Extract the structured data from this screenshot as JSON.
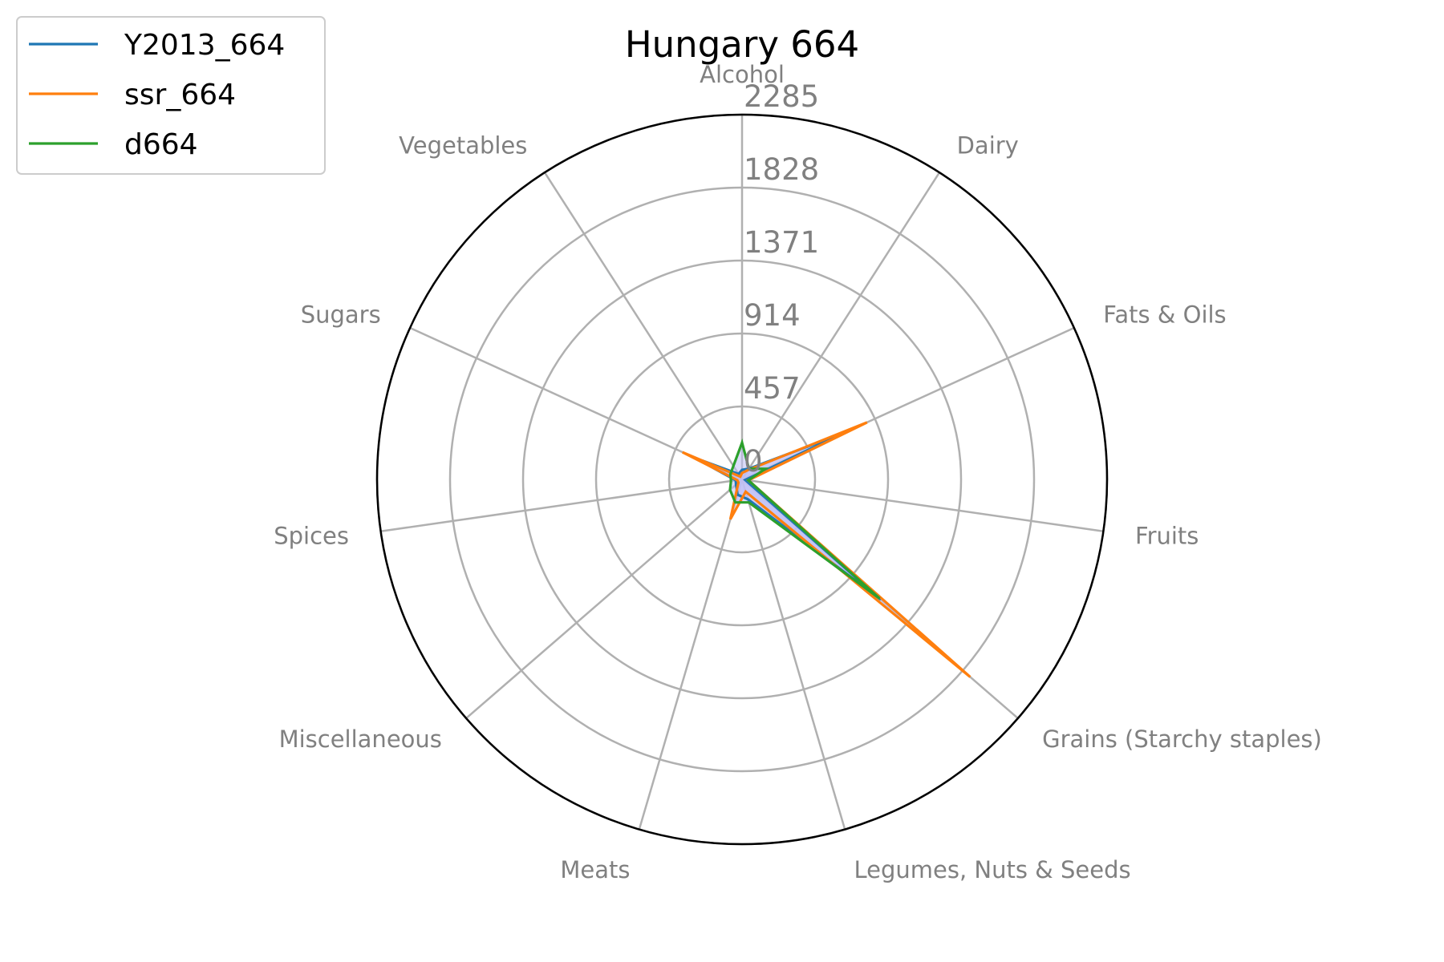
{
  "chart_data": {
    "type": "radar",
    "title": "Hungary 664",
    "categories": [
      "Alcohol",
      "Dairy",
      "Fats & Oils",
      "Fruits",
      "Grains (Starchy staples)",
      "Legumes, Nuts & Seeds",
      "Meats",
      "Miscellaneous",
      "Spices",
      "Sugars",
      "Vegetables"
    ],
    "radial_ticks": [
      "0",
      "457",
      "914",
      "1371",
      "1828",
      "2285"
    ],
    "rmax": 2285,
    "grid": true,
    "legend_position": "top-left",
    "series": [
      {
        "name": "Y2013_664",
        "color": "#1f77b4",
        "values": [
          60,
          80,
          700,
          20,
          1150,
          130,
          100,
          50,
          40,
          320,
          40
        ]
      },
      {
        "name": "ssr_664",
        "color": "#ff7f0e",
        "values": [
          40,
          70,
          860,
          40,
          1890,
          80,
          260,
          30,
          30,
          410,
          20
        ]
      },
      {
        "name": "d664",
        "color": "#2ca02c",
        "values": [
          230,
          80,
          160,
          40,
          1140,
          150,
          150,
          100,
          70,
          80,
          100
        ]
      }
    ],
    "fill_color": "#bfbff5"
  }
}
